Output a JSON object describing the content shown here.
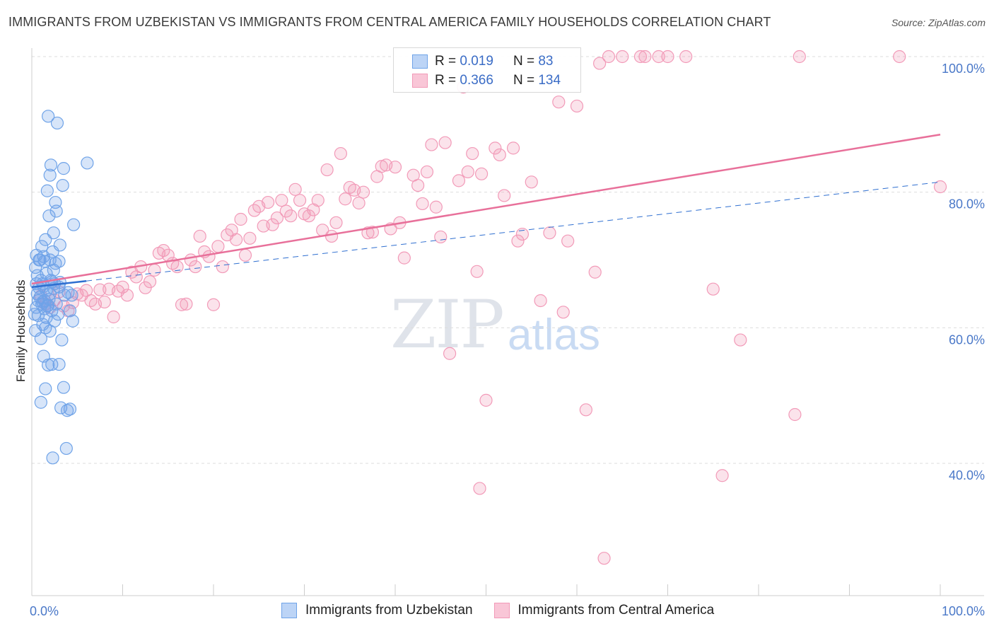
{
  "title": "IMMIGRANTS FROM UZBEKISTAN VS IMMIGRANTS FROM CENTRAL AMERICA FAMILY HOUSEHOLDS CORRELATION CHART",
  "source": "Source: ZipAtlas.com",
  "watermark": {
    "zip": "ZIP",
    "atlas": "atlas"
  },
  "legend_top": {
    "row1": {
      "r_label": "R =",
      "r_value": "0.019",
      "n_label": "N =",
      "n_value": "83"
    },
    "row2": {
      "r_label": "R =",
      "r_value": "0.366",
      "n_label": "N =",
      "n_value": "134"
    }
  },
  "legend_bottom": {
    "s1": "Immigrants from Uzbekistan",
    "s2": "Immigrants from Central America"
  },
  "colors": {
    "blue": "#6fa3e8",
    "blue_line": "#2f6fd0",
    "pink": "#f29ab8",
    "pink_line": "#e8709a",
    "tick": "#4a78c8"
  },
  "chart_data": {
    "type": "scatter",
    "ylabel": "Family Households",
    "xlabel": "",
    "x_tick_labels": [
      "0.0%",
      "100.0%"
    ],
    "y_tick_labels": [
      "40.0%",
      "60.0%",
      "80.0%",
      "100.0%"
    ],
    "xlim": [
      0,
      100
    ],
    "ylim": [
      20,
      102
    ],
    "y_ticks": [
      40,
      60,
      80,
      100
    ],
    "grid": true,
    "series": [
      {
        "name": "Immigrants from Uzbekistan",
        "color": "#6fa3e8",
        "trend": {
          "x0": 0,
          "y0": 66.0,
          "x1": 6,
          "y1": 66.9,
          "solid": true,
          "dashed_to": {
            "x": 100,
            "y": 81.5
          }
        },
        "points": [
          [
            0.3,
            62.0
          ],
          [
            0.4,
            59.6
          ],
          [
            0.5,
            66.5
          ],
          [
            0.6,
            65.0
          ],
          [
            0.7,
            61.8
          ],
          [
            0.8,
            70.0
          ],
          [
            0.9,
            64.5
          ],
          [
            1.0,
            58.4
          ],
          [
            1.0,
            49.0
          ],
          [
            0.6,
            67.7
          ],
          [
            1.1,
            72.0
          ],
          [
            1.2,
            66.5
          ],
          [
            1.2,
            63.8
          ],
          [
            1.3,
            55.8
          ],
          [
            1.3,
            70.5
          ],
          [
            1.4,
            62.8
          ],
          [
            1.4,
            69.8
          ],
          [
            1.5,
            73.0
          ],
          [
            1.5,
            60.0
          ],
          [
            1.5,
            51.0
          ],
          [
            1.6,
            68.0
          ],
          [
            1.6,
            65.5
          ],
          [
            1.7,
            63.2
          ],
          [
            1.7,
            80.2
          ],
          [
            1.8,
            91.2
          ],
          [
            1.8,
            54.5
          ],
          [
            1.9,
            76.5
          ],
          [
            1.9,
            64.2
          ],
          [
            2.0,
            82.5
          ],
          [
            2.0,
            70.0
          ],
          [
            2.0,
            59.5
          ],
          [
            2.1,
            84.0
          ],
          [
            2.1,
            67.0
          ],
          [
            2.2,
            62.5
          ],
          [
            2.2,
            54.6
          ],
          [
            2.3,
            71.2
          ],
          [
            2.3,
            40.8
          ],
          [
            2.4,
            74.0
          ],
          [
            2.4,
            65.8
          ],
          [
            2.5,
            61.0
          ],
          [
            2.5,
            66.5
          ],
          [
            2.6,
            78.5
          ],
          [
            2.6,
            69.5
          ],
          [
            2.7,
            77.2
          ],
          [
            2.7,
            63.5
          ],
          [
            2.8,
            90.2
          ],
          [
            2.9,
            62.0
          ],
          [
            3.0,
            69.8
          ],
          [
            3.0,
            54.6
          ],
          [
            3.1,
            66.7
          ],
          [
            3.1,
            72.2
          ],
          [
            3.2,
            48.2
          ],
          [
            3.3,
            58.2
          ],
          [
            3.4,
            81.0
          ],
          [
            3.5,
            83.5
          ],
          [
            3.5,
            51.2
          ],
          [
            3.6,
            64.8
          ],
          [
            3.8,
            42.2
          ],
          [
            3.9,
            47.8
          ],
          [
            4.0,
            65.2
          ],
          [
            4.2,
            48.0
          ],
          [
            4.2,
            62.5
          ],
          [
            4.4,
            64.8
          ],
          [
            4.5,
            61.0
          ],
          [
            4.6,
            75.2
          ],
          [
            6.1,
            84.3
          ],
          [
            0.4,
            68.9
          ],
          [
            0.5,
            63.0
          ],
          [
            0.8,
            65.9
          ],
          [
            1.0,
            67.0
          ],
          [
            1.3,
            66.1
          ],
          [
            0.9,
            70.0
          ],
          [
            1.6,
            61.5
          ],
          [
            2.2,
            66.8
          ],
          [
            0.7,
            64.0
          ],
          [
            1.2,
            60.5
          ],
          [
            1.8,
            63.3
          ],
          [
            2.4,
            68.5
          ],
          [
            1.4,
            64.0
          ],
          [
            0.5,
            70.7
          ],
          [
            3.0,
            66.0
          ],
          [
            2.0,
            65.0
          ],
          [
            1.1,
            63.5
          ]
        ]
      },
      {
        "name": "Immigrants from Central America",
        "color": "#f29ab8",
        "trend": {
          "x0": 0,
          "y0": 66.5,
          "x1": 100,
          "y1": 88.5
        },
        "points": [
          [
            1.0,
            64.7
          ],
          [
            1.5,
            63.5
          ],
          [
            2.0,
            63.0
          ],
          [
            2.5,
            64.1
          ],
          [
            3.0,
            65.3
          ],
          [
            3.5,
            63.2
          ],
          [
            4.0,
            62.5
          ],
          [
            4.5,
            63.7
          ],
          [
            5.0,
            65.0
          ],
          [
            5.5,
            64.8
          ],
          [
            6.0,
            65.5
          ],
          [
            6.5,
            64.0
          ],
          [
            7.0,
            63.5
          ],
          [
            7.5,
            65.6
          ],
          [
            8.0,
            63.8
          ],
          [
            8.5,
            65.7
          ],
          [
            9.0,
            61.6
          ],
          [
            9.5,
            65.4
          ],
          [
            10.0,
            66.0
          ],
          [
            10.5,
            64.8
          ],
          [
            11.0,
            68.2
          ],
          [
            11.5,
            67.5
          ],
          [
            12.0,
            69.0
          ],
          [
            12.5,
            65.9
          ],
          [
            13.0,
            66.8
          ],
          [
            13.5,
            68.5
          ],
          [
            14.0,
            71.0
          ],
          [
            14.5,
            71.4
          ],
          [
            15.0,
            70.7
          ],
          [
            15.5,
            69.5
          ],
          [
            16.0,
            69.0
          ],
          [
            16.5,
            63.4
          ],
          [
            17.0,
            63.5
          ],
          [
            17.5,
            70.0
          ],
          [
            18.0,
            69.0
          ],
          [
            18.5,
            73.5
          ],
          [
            19.0,
            71.2
          ],
          [
            19.5,
            70.5
          ],
          [
            20.0,
            63.4
          ],
          [
            20.5,
            72.0
          ],
          [
            21.0,
            69.0
          ],
          [
            21.5,
            73.7
          ],
          [
            22.0,
            74.4
          ],
          [
            22.5,
            73.0
          ],
          [
            23.0,
            76.0
          ],
          [
            23.5,
            70.7
          ],
          [
            24.0,
            73.2
          ],
          [
            24.5,
            77.3
          ],
          [
            25.0,
            77.9
          ],
          [
            25.5,
            75.0
          ],
          [
            26.0,
            78.5
          ],
          [
            26.5,
            75.2
          ],
          [
            27.0,
            76.2
          ],
          [
            27.5,
            78.8
          ],
          [
            28.0,
            77.2
          ],
          [
            28.5,
            76.5
          ],
          [
            29.0,
            80.4
          ],
          [
            29.5,
            78.8
          ],
          [
            30.0,
            76.8
          ],
          [
            30.5,
            76.5
          ],
          [
            31.0,
            77.4
          ],
          [
            31.5,
            78.8
          ],
          [
            32.0,
            74.4
          ],
          [
            32.5,
            83.3
          ],
          [
            33.0,
            73.5
          ],
          [
            33.5,
            75.5
          ],
          [
            34.0,
            85.7
          ],
          [
            34.5,
            79.0
          ],
          [
            35.0,
            80.7
          ],
          [
            35.5,
            80.3
          ],
          [
            36.0,
            78.4
          ],
          [
            36.5,
            80.0
          ],
          [
            37.0,
            74.0
          ],
          [
            37.5,
            74.1
          ],
          [
            38.0,
            82.3
          ],
          [
            38.5,
            83.8
          ],
          [
            39.0,
            84.0
          ],
          [
            39.5,
            74.6
          ],
          [
            40.0,
            83.7
          ],
          [
            40.5,
            75.5
          ],
          [
            41.0,
            70.3
          ],
          [
            42.0,
            82.5
          ],
          [
            42.5,
            81.0
          ],
          [
            43.0,
            78.3
          ],
          [
            43.5,
            83.0
          ],
          [
            44.0,
            87.0
          ],
          [
            44.5,
            77.8
          ],
          [
            45.0,
            73.4
          ],
          [
            45.5,
            87.3
          ],
          [
            46.0,
            56.2
          ],
          [
            47.0,
            81.7
          ],
          [
            47.5,
            95.5
          ],
          [
            48.0,
            83.0
          ],
          [
            48.5,
            85.7
          ],
          [
            49.0,
            68.3
          ],
          [
            49.5,
            82.7
          ],
          [
            50.0,
            49.3
          ],
          [
            51.0,
            86.5
          ],
          [
            51.5,
            85.5
          ],
          [
            52.0,
            79.5
          ],
          [
            53.0,
            86.5
          ],
          [
            53.5,
            72.8
          ],
          [
            54.0,
            73.8
          ],
          [
            55.0,
            81.5
          ],
          [
            56.0,
            64.0
          ],
          [
            57.0,
            74.0
          ],
          [
            58.0,
            93.3
          ],
          [
            58.5,
            62.3
          ],
          [
            59.0,
            72.8
          ],
          [
            60.0,
            92.7
          ],
          [
            61.0,
            47.9
          ],
          [
            62.0,
            68.2
          ],
          [
            62.5,
            99.0
          ],
          [
            63.5,
            100.0
          ],
          [
            65.0,
            100.0
          ],
          [
            67.0,
            100.0
          ],
          [
            67.5,
            100.0
          ],
          [
            69.0,
            100.0
          ],
          [
            70.0,
            100.0
          ],
          [
            72.0,
            100.0
          ],
          [
            75.0,
            65.7
          ],
          [
            76.0,
            38.2
          ],
          [
            78.0,
            58.2
          ],
          [
            84.0,
            47.2
          ],
          [
            84.5,
            100.0
          ],
          [
            95.5,
            100.0
          ],
          [
            100,
            80.8
          ],
          [
            49.3,
            36.3
          ],
          [
            63.0,
            26.0
          ],
          [
            56.5,
            100.0
          ]
        ]
      }
    ]
  }
}
